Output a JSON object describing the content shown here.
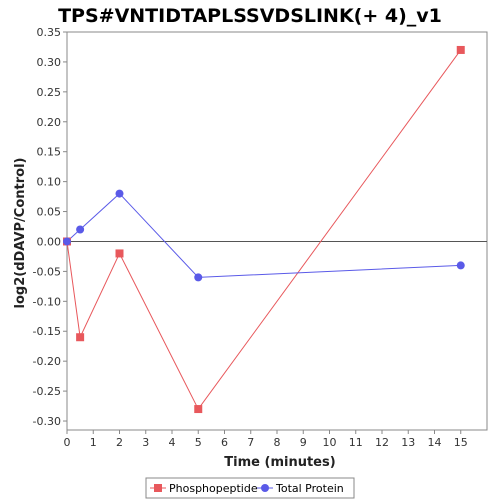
{
  "chart_data": {
    "type": "line",
    "title": "TPS#VNTIDTAPLSSVDSLINK(+ 4)_v1",
    "xlabel": "Time (minutes)",
    "ylabel": "log2(dDAVP/Control)",
    "xlim": [
      0,
      16
    ],
    "ylim": [
      -0.315,
      0.35
    ],
    "xticks": [
      0,
      1,
      2,
      3,
      4,
      5,
      6,
      7,
      8,
      9,
      10,
      11,
      12,
      13,
      14,
      15
    ],
    "yticks": [
      -0.3,
      -0.25,
      -0.2,
      -0.15,
      -0.1,
      -0.05,
      0.0,
      0.05,
      0.1,
      0.15,
      0.2,
      0.25,
      0.3,
      0.35
    ],
    "ytick_labels": [
      "-0.30",
      "-0.25",
      "-0.20",
      "-0.15",
      "-0.10",
      "-0.05",
      "0.00",
      "0.05",
      "0.10",
      "0.15",
      "0.20",
      "0.25",
      "0.30",
      "0.35"
    ],
    "grid": false,
    "zero_line": true,
    "legend_position": "bottom-center",
    "series": [
      {
        "name": "Phosphopeptide",
        "color": "#e8585c",
        "marker": "square",
        "x": [
          0,
          0.5,
          2,
          5,
          15
        ],
        "y": [
          0.0,
          -0.16,
          -0.02,
          -0.28,
          0.32
        ]
      },
      {
        "name": "Total Protein",
        "color": "#5a5ae8",
        "marker": "circle",
        "x": [
          0,
          0.5,
          2,
          5,
          15
        ],
        "y": [
          0.0,
          0.02,
          0.08,
          -0.06,
          -0.04
        ]
      }
    ]
  }
}
